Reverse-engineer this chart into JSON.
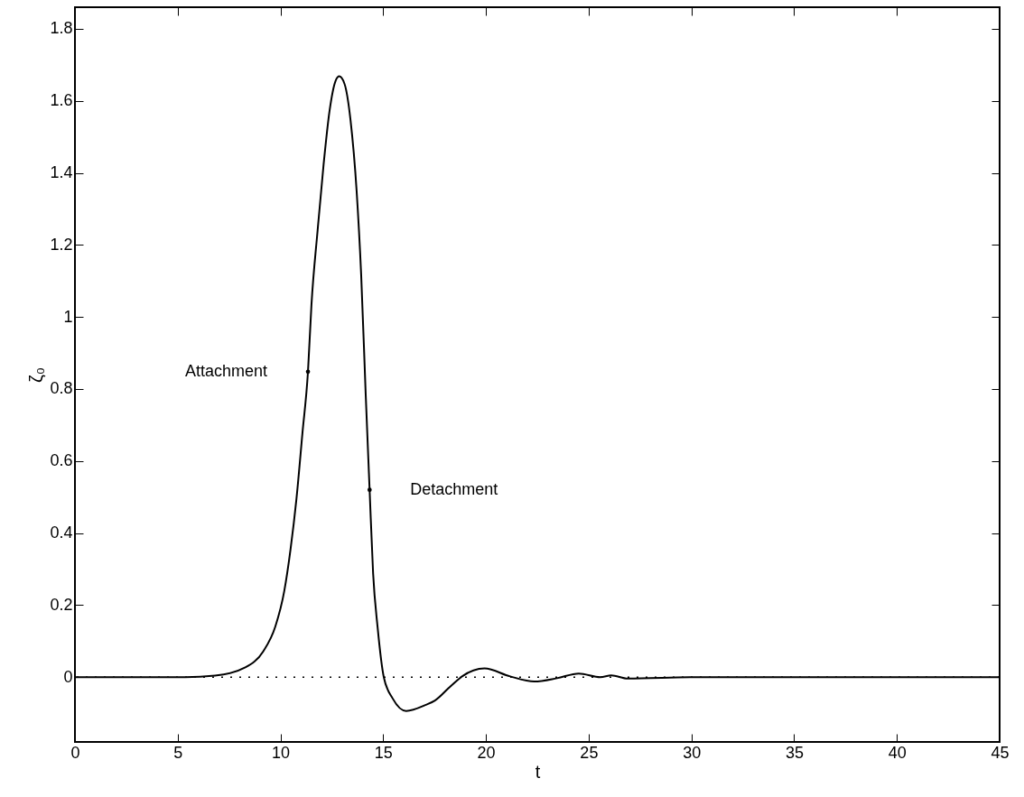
{
  "chart_data": {
    "type": "line",
    "xlabel": "t",
    "ylabel": "ζ₀",
    "xlim": [
      0,
      45
    ],
    "xticks": [
      0,
      5,
      10,
      15,
      20,
      25,
      30,
      35,
      40,
      45
    ],
    "ylim": [
      -0.18,
      1.86
    ],
    "yticks": [
      0,
      0.2,
      0.4,
      0.6,
      0.8,
      1,
      1.2,
      1.4,
      1.6,
      1.8
    ],
    "grid": false,
    "marker": "none",
    "line_style": "solid",
    "series": [
      {
        "color": "#000000",
        "x": [
          0,
          5.36,
          6.82,
          8.29,
          9.17,
          9.75,
          10.19,
          10.49,
          10.78,
          11.07,
          11.34,
          11.51,
          11.81,
          12.1,
          12.39,
          12.68,
          12.86,
          13.12,
          13.41,
          13.71,
          13.93,
          14.15,
          14.34,
          14.51,
          14.73,
          15.03,
          15.47,
          16.12,
          17.08,
          17.52,
          18.25,
          18.84,
          19.93,
          21.18,
          22.35,
          23.46,
          24.52,
          25.57,
          26.1,
          26.9,
          30.2,
          45
        ],
        "values": [
          0,
          0,
          0.004,
          0.027,
          0.072,
          0.14,
          0.24,
          0.354,
          0.495,
          0.677,
          0.848,
          1.034,
          1.241,
          1.423,
          1.572,
          1.655,
          1.668,
          1.647,
          1.547,
          1.348,
          1.116,
          0.785,
          0.52,
          0.288,
          0.138,
          0,
          -0.06,
          -0.094,
          -0.077,
          -0.065,
          -0.027,
          0.002,
          0.024,
          0.002,
          -0.012,
          -0.003,
          0.01,
          0,
          0.005,
          -0.004,
          0,
          0
        ]
      }
    ],
    "ref_lines": [
      {
        "axis": "y",
        "value": 0,
        "line_style": "dotted",
        "color": "#000000"
      }
    ],
    "annotations": [
      {
        "text": "Attachment",
        "x": 11.34,
        "y": 0.848
      },
      {
        "text": "Detachment",
        "x": 14.34,
        "y": 0.52
      }
    ]
  }
}
